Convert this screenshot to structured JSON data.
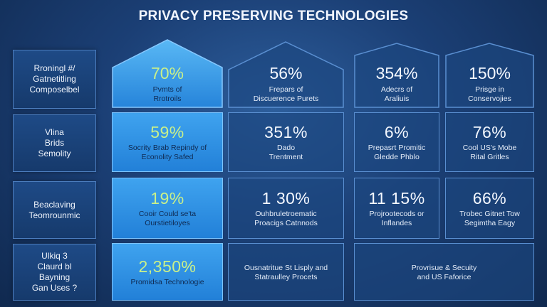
{
  "title": "PRIVACY PRESERVING TECHNOLOGIES",
  "row_labels": [
    "Rroningl #/\nGatnetitling\nComposelbel",
    "Vlina\nBrids\nSemolity",
    "Beaclaving\nTeomrounmic",
    "Ulkiq 3\nClaurd bl\nBayning\nGan Uses ?"
  ],
  "headers": [
    {
      "pct": "70%",
      "desc": "Pvmts of\nRrotroils"
    },
    {
      "pct": "56%",
      "desc": "Frepars of\nDiscuerence Purets"
    },
    {
      "pct": "354%",
      "desc": "Adecrs of\nAraliuis"
    },
    {
      "pct": "150%",
      "desc": "Prisge in\nConservojies"
    }
  ],
  "row2": [
    {
      "pct": "59%",
      "desc": "Socrity Brab Repindy of\nEconolity Safed"
    },
    {
      "pct": "351%",
      "desc": "Dado\nTrentment"
    },
    {
      "pct": "6%",
      "desc": "Prepasrt Promitic\nGledde Phblo"
    },
    {
      "pct": "76%",
      "desc": "Cool US's Mobe\nRital Gritles"
    }
  ],
  "row3": [
    {
      "pct": "19%",
      "desc": "Cooir Could se'ta\nOurstietiloyes"
    },
    {
      "pct": "1 30%",
      "desc": "Ouhbruletroematic\nProacigs Catnnods"
    },
    {
      "pct": "11 15%",
      "desc": "Projrootecods or\nInflandes"
    },
    {
      "pct": "66%",
      "desc": "Trobec Gitnet Tow\nSegimtha Eagy"
    }
  ],
  "row4": [
    {
      "pct": "2,350%",
      "desc": "Promidsa Technologie"
    },
    {
      "pct": "",
      "desc": "Ousnatritue St Lisply and\nStatraulley Procets"
    },
    {
      "pct": "",
      "desc": "Provrisue & Secuity\nand US Faforice"
    }
  ],
  "colors": {
    "highlight": "#2f92e6",
    "highlight_text": "#c9f08a",
    "cell_border": "#5a8fd1",
    "background": "#1b3f75"
  }
}
